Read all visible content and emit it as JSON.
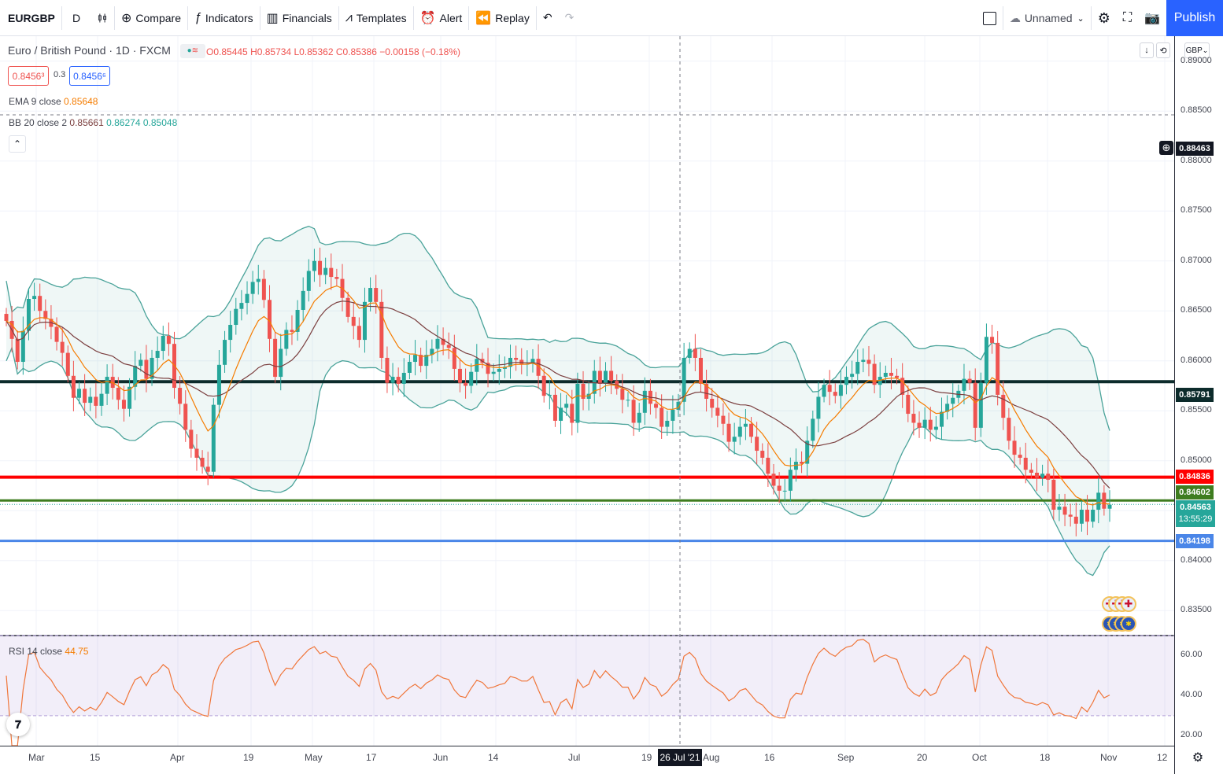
{
  "toolbar": {
    "symbol": "EURGBP",
    "interval": "D",
    "compare": "Compare",
    "indicators": "Indicators",
    "financials": "Financials",
    "templates": "Templates",
    "alert": "Alert",
    "replay": "Replay",
    "layout_name": "Unnamed",
    "publish": "Publish"
  },
  "legend": {
    "title": "Euro / British Pound · 1D · FXCM",
    "open": "O0.85445",
    "high": "H0.85734",
    "low": "L0.85362",
    "close": "C0.85386",
    "change": "−0.00158 (−0.18%)",
    "sell": "0.8456³",
    "spread": "0.3",
    "buy": "0.8456⁶",
    "ema_label": "EMA 9 close",
    "ema_value": "0.85648",
    "bb_label": "BB 20 close 2",
    "bb_basis": "0.85661",
    "bb_upper": "0.86274",
    "bb_lower": "0.85048",
    "rsi_label": "RSI 14 close",
    "rsi_value": "44.75"
  },
  "price_scale": {
    "currency": "GBP",
    "ticks": [
      "0.89000",
      "0.88500",
      "0.88000",
      "0.87500",
      "0.87000",
      "0.86500",
      "0.86000",
      "0.85500",
      "0.85000",
      "0.84500",
      "0.84000",
      "0.83500"
    ],
    "crosshair_price": "0.88463",
    "level_black": "0.85791",
    "level_red": "0.84836",
    "level_green": "0.84602",
    "last_price": "0.84563",
    "countdown": "13:55:29",
    "level_blue": "0.84198",
    "rsi_ticks": [
      "60.00",
      "40.00",
      "20.00"
    ]
  },
  "time_axis": {
    "labels": [
      "Mar",
      "15",
      "Apr",
      "19",
      "May",
      "17",
      "Jun",
      "14",
      "Jul",
      "19",
      "Aug",
      "16",
      "Sep",
      "20",
      "Oct",
      "18",
      "Nov",
      "12"
    ],
    "crosshair_date": "26 Jul '21"
  },
  "colors": {
    "up": "#26a69a",
    "down": "#ef5350",
    "black_line": "#0c2b2b",
    "red_line": "#ff0000",
    "green_line": "#3e7d1f",
    "blue_line": "#4a86e8",
    "ema": "#f57c00",
    "bb_basis": "#7b3f3f",
    "bb_band": "#4aa39a",
    "rsi": "#f0763a"
  },
  "chart_data": {
    "type": "candlestick",
    "symbol": "EURGBP",
    "timeframe": "1D",
    "ylim": [
      0.8325,
      0.8925
    ],
    "horizontal_levels": [
      0.85791,
      0.84836,
      0.84602,
      0.84198
    ],
    "closes": [
      0.864,
      0.8622,
      0.8599,
      0.863,
      0.8662,
      0.8665,
      0.865,
      0.8642,
      0.8634,
      0.8619,
      0.8608,
      0.8585,
      0.8563,
      0.8572,
      0.8558,
      0.8564,
      0.8555,
      0.8567,
      0.8584,
      0.8573,
      0.8561,
      0.8552,
      0.8574,
      0.8595,
      0.8601,
      0.8582,
      0.8603,
      0.861,
      0.8625,
      0.8617,
      0.8573,
      0.8557,
      0.8531,
      0.8512,
      0.8503,
      0.8494,
      0.8489,
      0.8556,
      0.8596,
      0.8621,
      0.8636,
      0.8652,
      0.8658,
      0.8667,
      0.8679,
      0.8682,
      0.8661,
      0.8622,
      0.8584,
      0.8612,
      0.8631,
      0.8629,
      0.8651,
      0.867,
      0.869,
      0.87,
      0.8686,
      0.8693,
      0.8684,
      0.8682,
      0.8663,
      0.8644,
      0.8635,
      0.8621,
      0.8659,
      0.8673,
      0.8659,
      0.8603,
      0.8578,
      0.8584,
      0.8577,
      0.8588,
      0.8599,
      0.8606,
      0.8595,
      0.8606,
      0.8612,
      0.8622,
      0.8616,
      0.8613,
      0.8592,
      0.8578,
      0.8575,
      0.8589,
      0.8602,
      0.8598,
      0.8587,
      0.8589,
      0.8592,
      0.8594,
      0.8603,
      0.8601,
      0.8597,
      0.8597,
      0.8602,
      0.8585,
      0.8565,
      0.8566,
      0.854,
      0.8553,
      0.8557,
      0.8538,
      0.8577,
      0.8562,
      0.8567,
      0.859,
      0.8577,
      0.859,
      0.858,
      0.8572,
      0.8561,
      0.8561,
      0.8538,
      0.8548,
      0.857,
      0.8557,
      0.8553,
      0.8534,
      0.854,
      0.8551,
      0.8559,
      0.8603,
      0.8612,
      0.8603,
      0.8577,
      0.8562,
      0.8553,
      0.8545,
      0.8537,
      0.8519,
      0.8524,
      0.8534,
      0.8537,
      0.8524,
      0.851,
      0.8503,
      0.8487,
      0.8475,
      0.847,
      0.847,
      0.8491,
      0.8499,
      0.8497,
      0.852,
      0.8542,
      0.8564,
      0.8576,
      0.8569,
      0.8565,
      0.8576,
      0.8584,
      0.8587,
      0.8599,
      0.8601,
      0.8597,
      0.8576,
      0.8584,
      0.8588,
      0.8585,
      0.8583,
      0.8566,
      0.8547,
      0.8538,
      0.8533,
      0.8541,
      0.8531,
      0.8534,
      0.8549,
      0.8557,
      0.8563,
      0.857,
      0.8582,
      0.8578,
      0.8533,
      0.8578,
      0.8624,
      0.8618,
      0.8566,
      0.8543,
      0.852,
      0.8506,
      0.8503,
      0.8491,
      0.8488,
      0.8483,
      0.8487,
      0.8481,
      0.8451,
      0.8454,
      0.8446,
      0.8444,
      0.8437,
      0.8451,
      0.8439,
      0.8451,
      0.8468,
      0.8452,
      0.8456
    ],
    "rsi": {
      "ylim": [
        15,
        70
      ],
      "bands": [
        30,
        70
      ]
    }
  }
}
